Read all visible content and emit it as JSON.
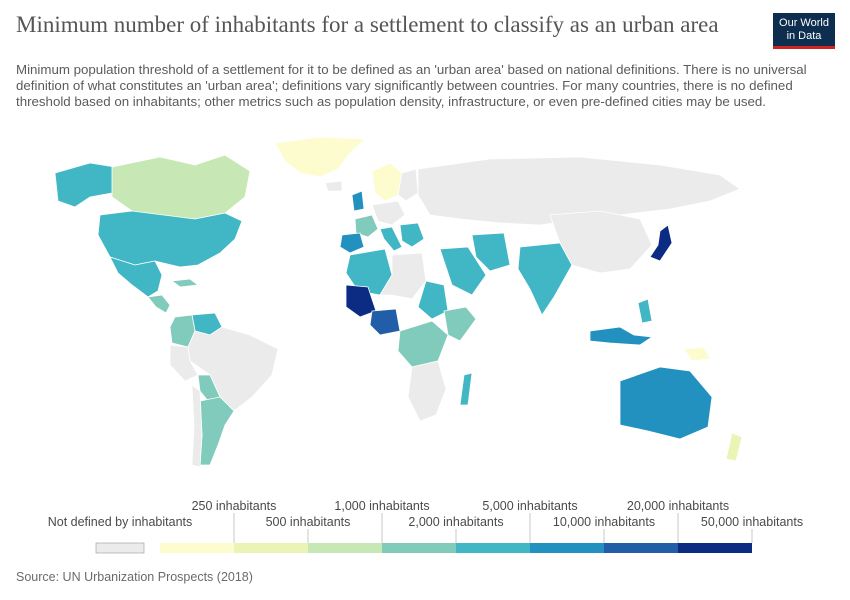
{
  "title": "Minimum number of inhabitants for a settlement to classify as an urban area",
  "subtitle": "Minimum population threshold of a settlement for it to be defined as an 'urban area' based on national definitions. There is no universal definition of what constitutes an 'urban area'; definitions vary significantly between countries. For many countries, there is no defined threshold based on inhabitants; other metrics such as population density, infrastructure, or even pre-defined cities may be used.",
  "logo": {
    "line1": "Our World",
    "line2": "in Data"
  },
  "source": "Source: UN Urbanization Prospects (2018)",
  "legend": {
    "no_data_label": "Not defined by inhabitants",
    "no_data_color": "#ebebeb",
    "bins": [
      {
        "label": "250 inhabitants",
        "color": "#fdfccf"
      },
      {
        "label": "500 inhabitants",
        "color": "#ebf4b4"
      },
      {
        "label": "1,000 inhabitants",
        "color": "#c7e7b4"
      },
      {
        "label": "2,000 inhabitants",
        "color": "#80cbbb"
      },
      {
        "label": "5,000 inhabitants",
        "color": "#41b6c4"
      },
      {
        "label": "10,000 inhabitants",
        "color": "#2391c0"
      },
      {
        "label": "20,000 inhabitants",
        "color": "#225ea8"
      },
      {
        "label": "50,000 inhabitants",
        "color": "#0c2c84"
      }
    ]
  },
  "regions": [
    {
      "name": "Greenland",
      "bin": 0
    },
    {
      "name": "Alaska / USA",
      "bin": 4
    },
    {
      "name": "Canada",
      "bin": 2
    },
    {
      "name": "United States",
      "bin": 4
    },
    {
      "name": "Mexico",
      "bin": 4
    },
    {
      "name": "Cuba",
      "bin": 3
    },
    {
      "name": "Central America",
      "bin": 3
    },
    {
      "name": "Venezuela",
      "bin": 4
    },
    {
      "name": "Colombia",
      "bin": 3
    },
    {
      "name": "Brazil",
      "bin": -1
    },
    {
      "name": "Peru",
      "bin": -1
    },
    {
      "name": "Bolivia",
      "bin": 3
    },
    {
      "name": "Argentina",
      "bin": 3
    },
    {
      "name": "Chile",
      "bin": -1
    },
    {
      "name": "Norway/Sweden",
      "bin": 0
    },
    {
      "name": "Finland",
      "bin": -1
    },
    {
      "name": "Iceland",
      "bin": -1
    },
    {
      "name": "United Kingdom",
      "bin": 5
    },
    {
      "name": "France",
      "bin": 3
    },
    {
      "name": "Spain/Portugal",
      "bin": 5
    },
    {
      "name": "Germany",
      "bin": -1
    },
    {
      "name": "Italy",
      "bin": 4
    },
    {
      "name": "Balkans",
      "bin": 4
    },
    {
      "name": "Russia",
      "bin": -1
    },
    {
      "name": "Algeria",
      "bin": 4
    },
    {
      "name": "Mali",
      "bin": 7
    },
    {
      "name": "Niger/Libya",
      "bin": -1
    },
    {
      "name": "Sudan",
      "bin": 4
    },
    {
      "name": "Ethiopia",
      "bin": 3
    },
    {
      "name": "Nigeria",
      "bin": 6
    },
    {
      "name": "Congo",
      "bin": 3
    },
    {
      "name": "Southern Africa",
      "bin": -1
    },
    {
      "name": "Madagascar",
      "bin": 4
    },
    {
      "name": "Saudi Arabia",
      "bin": 4
    },
    {
      "name": "Iran",
      "bin": 4
    },
    {
      "name": "India",
      "bin": 4
    },
    {
      "name": "China",
      "bin": -1
    },
    {
      "name": "Japan",
      "bin": 7
    },
    {
      "name": "Philippines",
      "bin": 4
    },
    {
      "name": "Indonesia",
      "bin": 5
    },
    {
      "name": "Australia",
      "bin": 5
    },
    {
      "name": "New Zealand",
      "bin": 1
    },
    {
      "name": "Papua New Guinea",
      "bin": 0
    }
  ]
}
